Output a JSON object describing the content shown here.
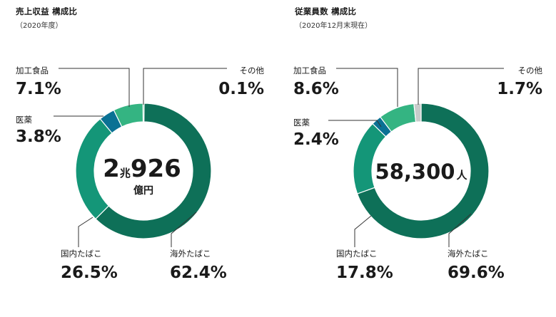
{
  "chart_data": [
    {
      "type": "pie",
      "title": "売上収益 構成比",
      "subtitle": "（2020年度）",
      "center": {
        "num1": "2",
        "unit1": "兆",
        "num2": "926",
        "unit2": "億円"
      },
      "colors": {
        "overseas": "#0e7058",
        "domestic": "#149678",
        "pharma": "#0a7194",
        "food": "#34b482",
        "other": "#3aaa7c"
      },
      "slices": [
        {
          "key": "overseas",
          "label": "海外たばこ",
          "value": 62.4,
          "value_label": "62.4%"
        },
        {
          "key": "domestic",
          "label": "国内たばこ",
          "value": 26.5,
          "value_label": "26.5%"
        },
        {
          "key": "pharma",
          "label": "医薬",
          "value": 3.8,
          "value_label": "3.8%"
        },
        {
          "key": "food",
          "label": "加工食品",
          "value": 7.1,
          "value_label": "7.1%"
        },
        {
          "key": "other",
          "label": "その他",
          "value": 0.1,
          "value_label": "0.1%"
        }
      ]
    },
    {
      "type": "pie",
      "title": "従業員数 構成比",
      "subtitle": "（2020年12月末現在）",
      "center": {
        "num1": "58,300",
        "unit1": "人"
      },
      "colors": {
        "overseas": "#0e7058",
        "domestic": "#149678",
        "pharma": "#0a7194",
        "food": "#34b482",
        "other": "#c8cccb"
      },
      "slices": [
        {
          "key": "overseas",
          "label": "海外たばこ",
          "value": 69.6,
          "value_label": "69.6%"
        },
        {
          "key": "domestic",
          "label": "国内たばこ",
          "value": 17.8,
          "value_label": "17.8%"
        },
        {
          "key": "pharma",
          "label": "医薬",
          "value": 2.4,
          "value_label": "2.4%"
        },
        {
          "key": "food",
          "label": "加工食品",
          "value": 8.6,
          "value_label": "8.6%"
        },
        {
          "key": "other",
          "label": "その他",
          "value": 1.7,
          "value_label": "1.7%"
        }
      ]
    }
  ]
}
